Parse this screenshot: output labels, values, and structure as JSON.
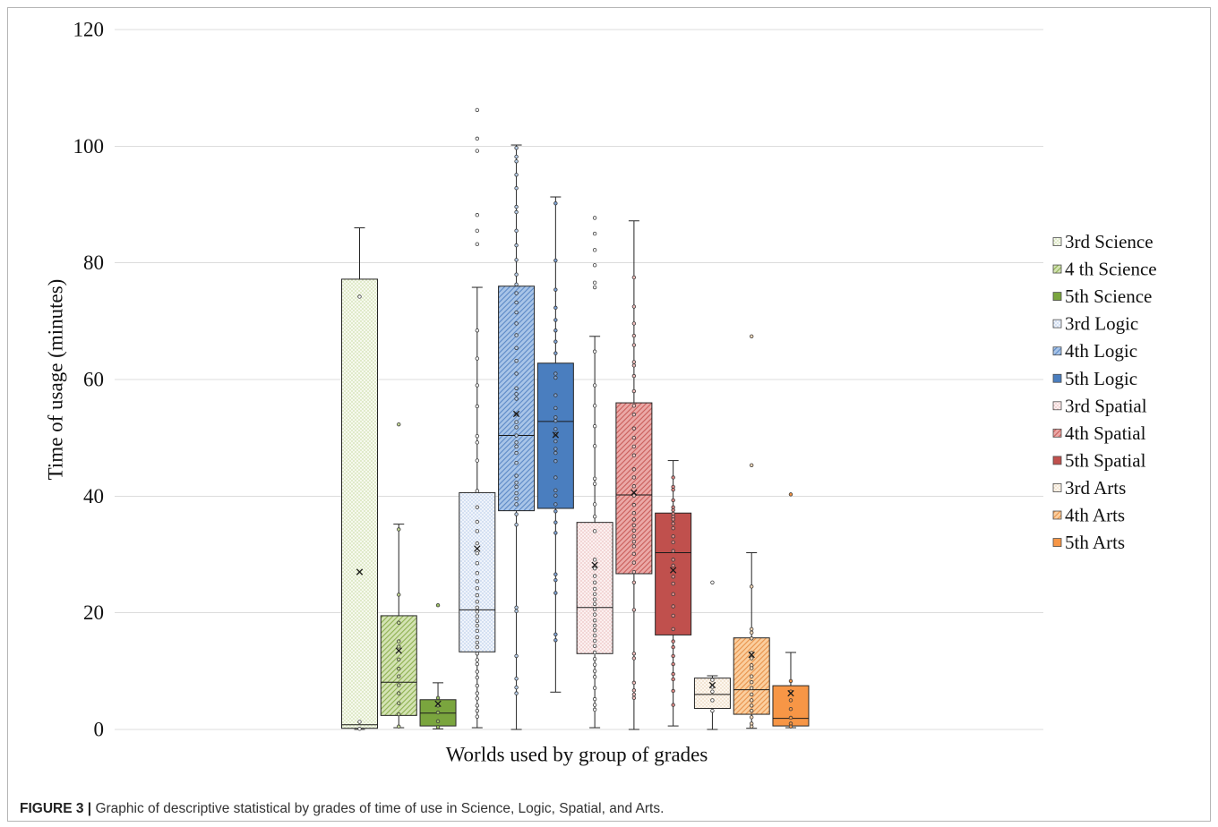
{
  "figure": {
    "label": "FIGURE 3 |",
    "caption": "Graphic of descriptive statistical by grades of time of use in Science, Logic, Spatial, and Arts."
  },
  "chart_data": {
    "type": "box",
    "xlabel": "Worlds used by group of grades",
    "ylabel": "Time of usage (minutes)",
    "ylim": [
      0,
      120
    ],
    "yticks": [
      0,
      20,
      40,
      60,
      80,
      100,
      120
    ],
    "grid": true,
    "legend": "right",
    "series": [
      {
        "name": "3rd Science",
        "pattern": "dots",
        "fill": "#f6f9ee",
        "accent": "#a9c46f",
        "point_color": "#ffffff",
        "whisker_low": 0,
        "q1": 0.2,
        "median": 0.8,
        "q3": 77.2,
        "whisker_high": 86.0,
        "mean": 27.0,
        "outliers": [],
        "points": [
          74.2,
          1.3,
          0.1
        ]
      },
      {
        "name": "4 th Science",
        "pattern": "hatch",
        "fill": "#d4e3b4",
        "accent": "#8db050",
        "point_color": "#c6da98",
        "whisker_low": 0.3,
        "q1": 2.4,
        "median": 8.1,
        "q3": 19.5,
        "whisker_high": 35.2,
        "mean": 13.5,
        "outliers": [
          52.3
        ],
        "points": [
          34.3,
          23.1,
          18.3,
          15.1,
          14.2,
          12.0,
          10.4,
          9.1,
          7.6,
          6.2,
          4.5,
          2.6,
          0.5
        ]
      },
      {
        "name": "5th Science",
        "pattern": "solid",
        "fill": "#7aa53e",
        "accent": "#7aa53e",
        "point_color": "#9cc064",
        "whisker_low": 0.1,
        "q1": 0.6,
        "median": 2.8,
        "q3": 5.1,
        "whisker_high": 8.0,
        "mean": 4.4,
        "outliers": [
          21.3
        ],
        "points": [
          5.4,
          4.1,
          2.9,
          1.4,
          0.4
        ]
      },
      {
        "name": "3rd Logic",
        "pattern": "dots",
        "fill": "#f0f4fb",
        "accent": "#8fb0db",
        "point_color": "#ffffff",
        "whisker_low": 0.3,
        "q1": 13.3,
        "median": 20.5,
        "q3": 40.6,
        "whisker_high": 75.8,
        "mean": 31.0,
        "outliers": [
          106.2,
          101.3,
          99.2,
          88.2,
          85.5,
          83.2
        ],
        "points": [
          68.4,
          63.6,
          59.0,
          55.4,
          50.3,
          49.2,
          46.1,
          40.9,
          38.1,
          35.6,
          34.0,
          31.9,
          30.2,
          28.5,
          26.8,
          25.4,
          24.2,
          23.0,
          21.9,
          20.9,
          20.2,
          19.4,
          18.6,
          17.8,
          16.9,
          15.8,
          14.9,
          14.1,
          13.0,
          11.9,
          11.2,
          9.9,
          8.9,
          7.5,
          6.2,
          5.3,
          4.1,
          3.2,
          2.2
        ]
      },
      {
        "name": "4th Logic",
        "pattern": "hatch",
        "fill": "#a9c5e8",
        "accent": "#5b88c6",
        "point_color": "#bcd3ef",
        "whisker_low": 0,
        "q1": 37.5,
        "median": 50.4,
        "q3": 76.0,
        "whisker_high": 100.2,
        "mean": 54.1,
        "outliers": [],
        "points": [
          99.7,
          98.2,
          97.4,
          95.1,
          92.8,
          89.6,
          88.7,
          85.5,
          83.0,
          80.5,
          78.0,
          76.3,
          74.8,
          73.2,
          71.5,
          69.6,
          67.6,
          65.4,
          63.2,
          61.0,
          58.5,
          57.5,
          56.7,
          54.0,
          52.7,
          51.8,
          50.4,
          49.2,
          48.5,
          47.4,
          45.7,
          43.5,
          42.3,
          41.6,
          40.5,
          39.6,
          38.6,
          36.9,
          35.1,
          20.9,
          20.3,
          12.6,
          8.7,
          7.2,
          6.2
        ]
      },
      {
        "name": "5th Logic",
        "pattern": "solid",
        "fill": "#4a7ebf",
        "accent": "#4a7ebf",
        "point_color": "#7ea3d6",
        "whisker_low": 6.4,
        "q1": 37.9,
        "median": 52.8,
        "q3": 62.8,
        "whisker_high": 91.3,
        "mean": 50.5,
        "outliers": [],
        "points": [
          90.2,
          80.4,
          75.4,
          72.3,
          70.2,
          68.4,
          66.5,
          64.5,
          61.0,
          60.3,
          57.3,
          55.1,
          53.5,
          52.9,
          51.5,
          50.6,
          49.4,
          48.1,
          47.4,
          46.0,
          43.2,
          41.0,
          40.1,
          38.6,
          37.4,
          35.5,
          33.7,
          26.6,
          25.6,
          23.4,
          16.3,
          15.3
        ]
      },
      {
        "name": "3rd Spatial",
        "pattern": "dots",
        "fill": "#fcf0f0",
        "accent": "#dc9896",
        "point_color": "#ffffff",
        "whisker_low": 0.3,
        "q1": 13.0,
        "median": 20.9,
        "q3": 35.5,
        "whisker_high": 67.4,
        "mean": 28.2,
        "outliers": [
          87.7,
          85.0,
          82.2,
          79.6,
          76.6,
          75.8
        ],
        "points": [
          64.8,
          59.0,
          55.5,
          52.0,
          48.6,
          43.0,
          42.1,
          38.6,
          36.5,
          34.0,
          29.1,
          27.6,
          26.3,
          25.2,
          24.1,
          23.2,
          22.3,
          21.5,
          20.6,
          19.7,
          18.7,
          17.8,
          17.0,
          16.1,
          15.2,
          14.3,
          13.2,
          12.1,
          11.1,
          10.0,
          9.0,
          7.1,
          5.2,
          4.2,
          3.4
        ]
      },
      {
        "name": "4th Spatial",
        "pattern": "hatch",
        "fill": "#eba9a7",
        "accent": "#c95d5a",
        "point_color": "#f2c0be",
        "whisker_low": 0,
        "q1": 26.7,
        "median": 40.2,
        "q3": 56.0,
        "whisker_high": 87.2,
        "mean": 40.6,
        "outliers": [],
        "points": [
          77.5,
          72.5,
          69.6,
          67.5,
          65.9,
          63.0,
          62.4,
          60.6,
          58.0,
          55.5,
          54.0,
          51.6,
          50.0,
          48.5,
          47.0,
          44.6,
          43.2,
          41.7,
          40.1,
          38.5,
          37.1,
          36.0,
          35.0,
          34.1,
          33.1,
          32.2,
          31.4,
          30.1,
          28.6,
          27.0,
          25.2,
          20.5,
          13.0,
          12.2,
          8.0,
          6.7,
          6.0,
          5.4
        ]
      },
      {
        "name": "5th Spatial",
        "pattern": "solid",
        "fill": "#c0504d",
        "accent": "#c0504d",
        "point_color": "#e08a87",
        "whisker_low": 0.6,
        "q1": 16.2,
        "median": 30.3,
        "q3": 37.1,
        "whisker_high": 46.1,
        "mean": 27.3,
        "outliers": [],
        "points": [
          43.2,
          41.6,
          41.1,
          39.3,
          38.1,
          37.6,
          37.0,
          36.5,
          36.0,
          35.3,
          34.5,
          33.1,
          32.1,
          30.6,
          29.1,
          28.1,
          26.2,
          25.0,
          23.2,
          21.1,
          19.5,
          17.2,
          15.1,
          14.1,
          12.6,
          11.2,
          9.5,
          8.6,
          6.6,
          4.2
        ]
      },
      {
        "name": "3rd Arts",
        "pattern": "dots",
        "fill": "#fdf7ef",
        "accent": "#d8b892",
        "point_color": "#ffffff",
        "whisker_low": 0,
        "q1": 3.6,
        "median": 6.0,
        "q3": 8.8,
        "whisker_high": 9.2,
        "mean": 7.6,
        "outliers": [
          25.2
        ],
        "points": [
          8.5,
          7.3,
          6.5,
          5.0,
          3.2
        ]
      },
      {
        "name": "4th Arts",
        "pattern": "hatch",
        "fill": "#fbcf9f",
        "accent": "#e8924a",
        "point_color": "#fcdcbc",
        "whisker_low": 0.2,
        "q1": 2.6,
        "median": 6.8,
        "q3": 15.7,
        "whisker_high": 30.3,
        "mean": 12.8,
        "outliers": [
          67.4,
          45.3
        ],
        "points": [
          24.5,
          17.2,
          16.6,
          15.6,
          13.1,
          12.2,
          11.0,
          10.5,
          9.1,
          8.1,
          7.1,
          6.0,
          5.0,
          4.1,
          3.2,
          2.1,
          1.0,
          0.5
        ]
      },
      {
        "name": "5th Arts",
        "pattern": "solid",
        "fill": "#f79646",
        "accent": "#f79646",
        "point_color": "#f79646",
        "whisker_low": 0.3,
        "q1": 0.6,
        "median": 1.9,
        "q3": 7.5,
        "whisker_high": 13.2,
        "mean": 6.2,
        "outliers": [
          40.3
        ],
        "points": [
          8.3,
          6.5,
          5.0,
          3.5,
          2.0,
          1.0,
          0.5
        ]
      }
    ]
  }
}
